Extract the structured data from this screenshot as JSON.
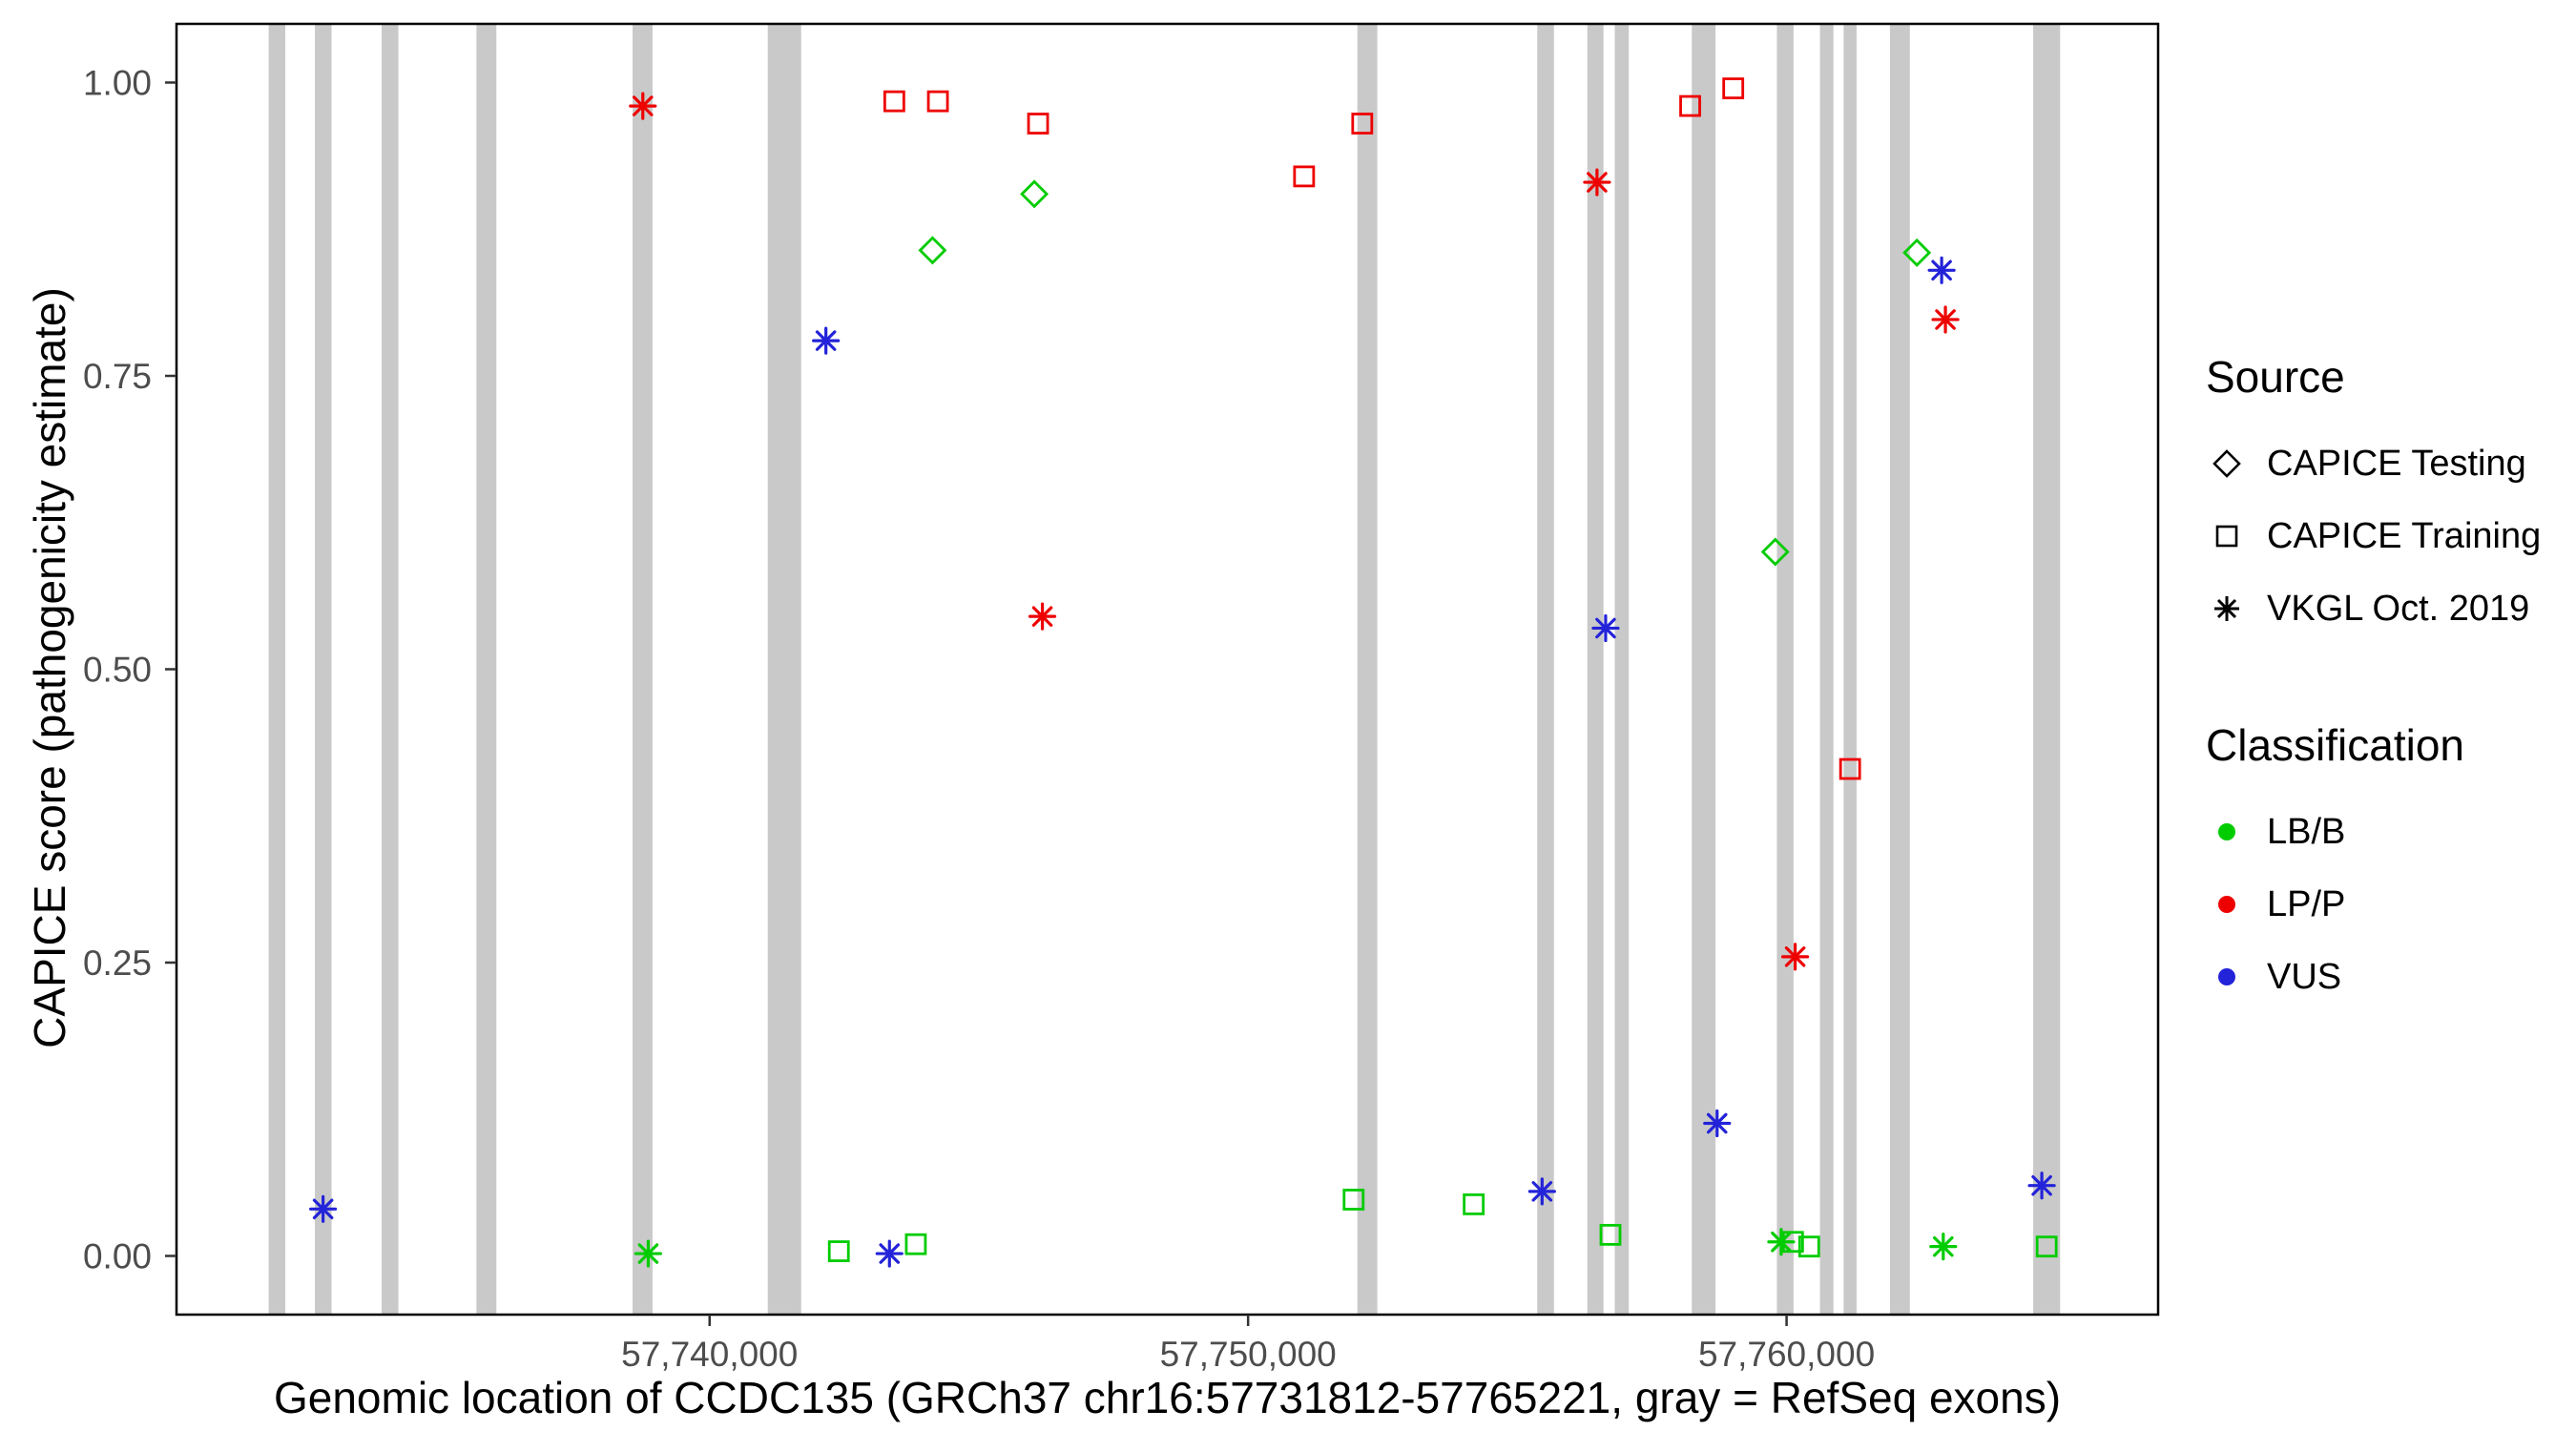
{
  "chart_data": {
    "type": "scatter",
    "title": "",
    "xlabel": "Genomic location of CCDC135 (GRCh37 chr16:57731812-57765221, gray = RefSeq exons)",
    "ylabel": "CAPICE score (pathogenicity estimate)",
    "xlim": [
      57730100,
      57766900
    ],
    "ylim": [
      -0.05,
      1.05
    ],
    "grid": "off",
    "legend_position": "right",
    "exon_color": "#c9c9c9",
    "colors": {
      "lbb": "#00cc00",
      "lpp": "#ee0000",
      "vus": "#2323d9"
    },
    "x_ticks": [
      {
        "value": 57740000,
        "label": "57,740,000"
      },
      {
        "value": 57750000,
        "label": "57,750,000"
      },
      {
        "value": 57760000,
        "label": "57,760,000"
      }
    ],
    "y_ticks": [
      {
        "value": 0.0,
        "label": "0.00"
      },
      {
        "value": 0.25,
        "label": "0.25"
      },
      {
        "value": 0.5,
        "label": "0.50"
      },
      {
        "value": 0.75,
        "label": "0.75"
      },
      {
        "value": 1.0,
        "label": "1.00"
      }
    ],
    "exons": [
      {
        "start": 57731812,
        "end": 57732120
      },
      {
        "start": 57732670,
        "end": 57732980
      },
      {
        "start": 57733910,
        "end": 57734220
      },
      {
        "start": 57735670,
        "end": 57736040
      },
      {
        "start": 57738570,
        "end": 57738940
      },
      {
        "start": 57741080,
        "end": 57741700
      },
      {
        "start": 57752030,
        "end": 57752400
      },
      {
        "start": 57755370,
        "end": 57755680
      },
      {
        "start": 57756300,
        "end": 57756600
      },
      {
        "start": 57756810,
        "end": 57757070
      },
      {
        "start": 57758240,
        "end": 57758680
      },
      {
        "start": 57759820,
        "end": 57760130
      },
      {
        "start": 57760620,
        "end": 57760870
      },
      {
        "start": 57761060,
        "end": 57761300
      },
      {
        "start": 57761920,
        "end": 57762290
      },
      {
        "start": 57764580,
        "end": 57765080
      }
    ],
    "points": [
      {
        "loc": 57732822,
        "score": 0.04,
        "source": "vkgl",
        "cls": "vus"
      },
      {
        "loc": 57738760,
        "score": 0.98,
        "source": "vkgl",
        "cls": "lpp"
      },
      {
        "loc": 57738860,
        "score": 0.002,
        "source": "vkgl",
        "cls": "lbb"
      },
      {
        "loc": 57742160,
        "score": 0.78,
        "source": "vkgl",
        "cls": "vus"
      },
      {
        "loc": 57742400,
        "score": 0.004,
        "source": "training",
        "cls": "lbb"
      },
      {
        "loc": 57743340,
        "score": 0.002,
        "source": "vkgl",
        "cls": "vus"
      },
      {
        "loc": 57743430,
        "score": 0.984,
        "source": "training",
        "cls": "lpp"
      },
      {
        "loc": 57743830,
        "score": 0.01,
        "source": "training",
        "cls": "lbb"
      },
      {
        "loc": 57744140,
        "score": 0.857,
        "source": "testing",
        "cls": "lbb"
      },
      {
        "loc": 57744240,
        "score": 0.984,
        "source": "training",
        "cls": "lpp"
      },
      {
        "loc": 57746030,
        "score": 0.905,
        "source": "testing",
        "cls": "lbb"
      },
      {
        "loc": 57746100,
        "score": 0.965,
        "source": "training",
        "cls": "lpp"
      },
      {
        "loc": 57746180,
        "score": 0.545,
        "source": "vkgl",
        "cls": "lpp"
      },
      {
        "loc": 57751040,
        "score": 0.92,
        "source": "training",
        "cls": "lpp"
      },
      {
        "loc": 57751960,
        "score": 0.048,
        "source": "training",
        "cls": "lbb"
      },
      {
        "loc": 57752120,
        "score": 0.965,
        "source": "training",
        "cls": "lpp"
      },
      {
        "loc": 57754190,
        "score": 0.044,
        "source": "training",
        "cls": "lbb"
      },
      {
        "loc": 57755460,
        "score": 0.055,
        "source": "vkgl",
        "cls": "vus"
      },
      {
        "loc": 57756480,
        "score": 0.915,
        "source": "vkgl",
        "cls": "lpp"
      },
      {
        "loc": 57756640,
        "score": 0.535,
        "source": "vkgl",
        "cls": "vus"
      },
      {
        "loc": 57756730,
        "score": 0.018,
        "source": "training",
        "cls": "lbb"
      },
      {
        "loc": 57758210,
        "score": 0.98,
        "source": "training",
        "cls": "lpp"
      },
      {
        "loc": 57758710,
        "score": 0.113,
        "source": "vkgl",
        "cls": "vus"
      },
      {
        "loc": 57759010,
        "score": 0.995,
        "source": "training",
        "cls": "lpp"
      },
      {
        "loc": 57759790,
        "score": 0.6,
        "source": "testing",
        "cls": "lbb"
      },
      {
        "loc": 57759900,
        "score": 0.012,
        "source": "vkgl",
        "cls": "lbb"
      },
      {
        "loc": 57760120,
        "score": 0.012,
        "source": "training",
        "cls": "lbb"
      },
      {
        "loc": 57760160,
        "score": 0.255,
        "source": "vkgl",
        "cls": "lpp"
      },
      {
        "loc": 57760420,
        "score": 0.008,
        "source": "training",
        "cls": "lbb"
      },
      {
        "loc": 57761180,
        "score": 0.415,
        "source": "training",
        "cls": "lpp"
      },
      {
        "loc": 57762420,
        "score": 0.855,
        "source": "testing",
        "cls": "lbb"
      },
      {
        "loc": 57762880,
        "score": 0.84,
        "source": "vkgl",
        "cls": "vus"
      },
      {
        "loc": 57762910,
        "score": 0.008,
        "source": "vkgl",
        "cls": "lbb"
      },
      {
        "loc": 57762950,
        "score": 0.798,
        "source": "vkgl",
        "cls": "lpp"
      },
      {
        "loc": 57764740,
        "score": 0.06,
        "source": "vkgl",
        "cls": "vus"
      },
      {
        "loc": 57764830,
        "score": 0.008,
        "source": "training",
        "cls": "lbb"
      }
    ],
    "legend": {
      "source": {
        "title": "Source",
        "items": [
          {
            "label": "CAPICE Testing",
            "shape": "diamond"
          },
          {
            "label": "CAPICE Training",
            "shape": "square"
          },
          {
            "label": "VKGL Oct. 2019",
            "shape": "asterisk"
          }
        ]
      },
      "classification": {
        "title": "Classification",
        "items": [
          {
            "label": "LB/B",
            "color_key": "lbb"
          },
          {
            "label": "LP/P",
            "color_key": "lpp"
          },
          {
            "label": "VUS",
            "color_key": "vus"
          }
        ]
      }
    }
  }
}
